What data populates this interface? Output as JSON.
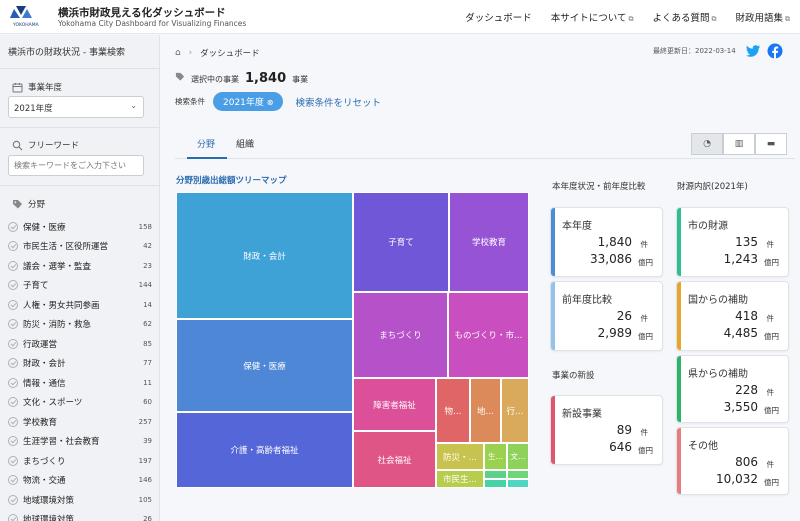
{
  "header": {
    "logo_text": "YOKOHAMA",
    "title": "横浜市財政見える化ダッシュボード",
    "subtitle": "Yokohama City Dashboard for Visualizing Finances",
    "nav": [
      "ダッシュボード",
      "本サイトについて",
      "よくある質問",
      "財政用語集"
    ]
  },
  "sidebar": {
    "title": "横浜市の財政状況 - 事業検索",
    "year_label": "事業年度",
    "year_value": "2021年度",
    "keyword_label": "フリーワード",
    "keyword_placeholder": "検索キーワードをご入力下さい",
    "category_label": "分野",
    "categories": [
      {
        "name": "保健・医療",
        "count": "158"
      },
      {
        "name": "市民生活・区役所運営",
        "count": "42"
      },
      {
        "name": "議会・選挙・監査",
        "count": "23"
      },
      {
        "name": "子育て",
        "count": "144"
      },
      {
        "name": "人権・男女共同参画",
        "count": "14"
      },
      {
        "name": "防災・消防・救急",
        "count": "62"
      },
      {
        "name": "行政運営",
        "count": "85"
      },
      {
        "name": "財政・会計",
        "count": "77"
      },
      {
        "name": "情報・通信",
        "count": "11"
      },
      {
        "name": "文化・スポーツ",
        "count": "60"
      },
      {
        "name": "学校教育",
        "count": "257"
      },
      {
        "name": "生涯学習・社会教育",
        "count": "39"
      },
      {
        "name": "まちづくり",
        "count": "197"
      },
      {
        "name": "物流・交通",
        "count": "146"
      },
      {
        "name": "地域環境対策",
        "count": "105"
      },
      {
        "name": "地球環境対策",
        "count": "26"
      }
    ]
  },
  "main": {
    "breadcrumb": "ダッシュボード",
    "updated": "最終更新日：2022-03-14",
    "selected_label": "選択中の事業",
    "selected_count": "1,840",
    "selected_unit": "事業",
    "cond_label": "検索条件",
    "cond_pill": "2021年度",
    "reset": "検索条件をリセット",
    "tabs": [
      "分野",
      "組織"
    ],
    "treemap_title": "分野別歳出総額ツリーマップ",
    "treemap": [
      {
        "label": "財政・会計",
        "color": "#3fa2d6"
      },
      {
        "label": "保健・医療",
        "color": "#4d87d6"
      },
      {
        "label": "介護・高齢者福祉",
        "color": "#5567d8"
      },
      {
        "label": "子育て",
        "color": "#6f57d8"
      },
      {
        "label": "学校教育",
        "color": "#9753d6"
      },
      {
        "label": "まちづくり",
        "color": "#b652c9"
      },
      {
        "label": "ものづくり・市…",
        "color": "#c94fc0"
      },
      {
        "label": "障害者福祉",
        "color": "#dc4f99"
      },
      {
        "label": "社会福祉",
        "color": "#df5585"
      },
      {
        "label": "物…",
        "color": "#df6566"
      },
      {
        "label": "地…",
        "color": "#dd8a5a"
      },
      {
        "label": "行…",
        "color": "#d9a95c"
      },
      {
        "label": "防災・…",
        "color": "#c8c24e"
      },
      {
        "label": "生…",
        "color": "#9bd150"
      },
      {
        "label": "文…",
        "color": "#8ed25c"
      },
      {
        "label": "市民生…",
        "color": "#b7cd4c"
      },
      {
        "label": "",
        "color": "#5dd08a"
      },
      {
        "label": "",
        "color": "#48d2a6"
      },
      {
        "label": "",
        "color": "#6ed578"
      },
      {
        "label": "",
        "color": "#4fd5c0"
      }
    ],
    "status_title": "本年度状況・前年度比較",
    "new_title": "事業の新設",
    "source_title": "財源内訳(2021年)",
    "cards": {
      "this_year": {
        "title": "本年度",
        "v1": "1,840",
        "u1": "件",
        "v2": "33,086",
        "u2": "億円",
        "color": "#4a8fd6"
      },
      "compare": {
        "title": "前年度比較",
        "v1": "26",
        "u1": "件",
        "v2": "2,989",
        "u2": "億円",
        "color": "#93c3ea"
      },
      "new": {
        "title": "新設事業",
        "v1": "89",
        "u1": "件",
        "v2": "646",
        "u2": "億円",
        "color": "#e0566f"
      },
      "city": {
        "title": "市の財源",
        "v1": "135",
        "u1": "件",
        "v2": "1,243",
        "u2": "億円",
        "color": "#2fbf8f"
      },
      "national": {
        "title": "国からの補助",
        "v1": "418",
        "u1": "件",
        "v2": "4,485",
        "u2": "億円",
        "color": "#e6a52c"
      },
      "pref": {
        "title": "県からの補助",
        "v1": "228",
        "u1": "件",
        "v2": "3,550",
        "u2": "億円",
        "color": "#2eb46a"
      },
      "other": {
        "title": "その他",
        "v1": "806",
        "u1": "件",
        "v2": "10,032",
        "u2": "億円",
        "color": "#e57c80"
      }
    }
  }
}
